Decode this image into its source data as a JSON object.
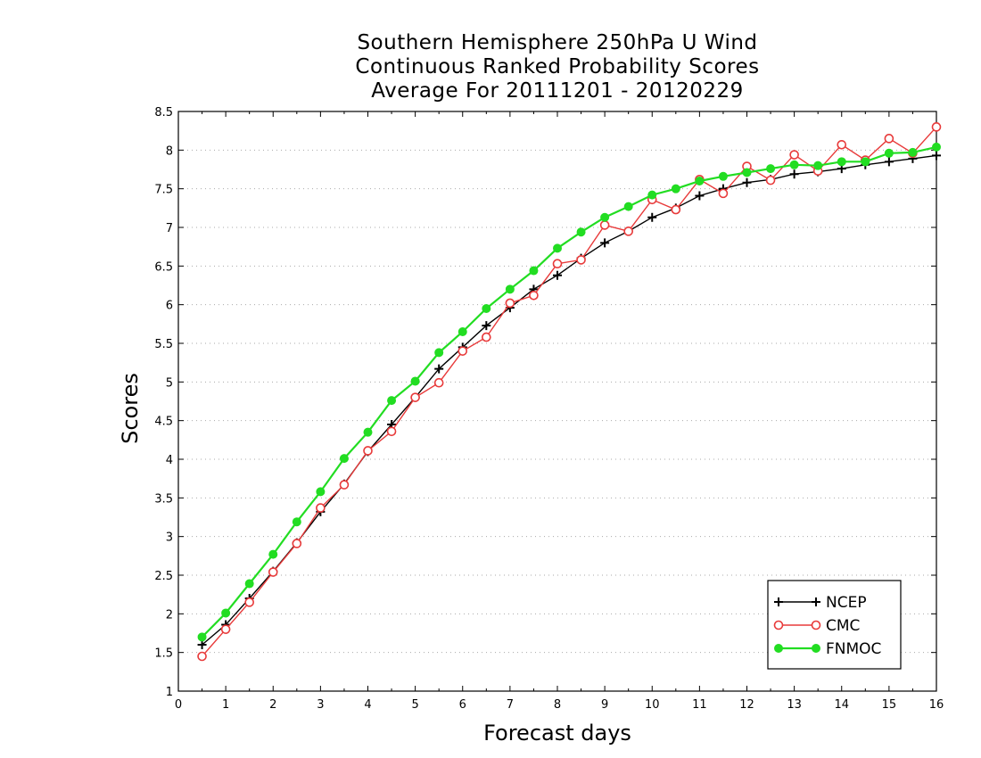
{
  "chart_data": {
    "type": "line",
    "title": [
      "Southern Hemisphere 250hPa U Wind",
      "Continuous Ranked Probability Scores",
      "Average For 20111201 - 20120229"
    ],
    "xlabel": "Forecast days",
    "ylabel": "Scores",
    "xlim": [
      0,
      16
    ],
    "ylim": [
      1,
      8.5
    ],
    "xticks": [
      "0",
      "1",
      "2",
      "3",
      "4",
      "5",
      "6",
      "7",
      "8",
      "9",
      "10",
      "11",
      "12",
      "13",
      "14",
      "15",
      "16"
    ],
    "yticks": [
      "1",
      "1.5",
      "2",
      "2.5",
      "3",
      "3.5",
      "4",
      "4.5",
      "5",
      "5.5",
      "6",
      "6.5",
      "7",
      "7.5",
      "8",
      "8.5"
    ],
    "grid": true,
    "legend_position": "bottom-right",
    "x": [
      0.5,
      1,
      1.5,
      2,
      2.5,
      3,
      3.5,
      4,
      4.5,
      5,
      5.5,
      6,
      6.5,
      7,
      7.5,
      8,
      8.5,
      9,
      9.5,
      10,
      10.5,
      11,
      11.5,
      12,
      12.5,
      13,
      13.5,
      14,
      14.5,
      15,
      15.5,
      16
    ],
    "series": [
      {
        "name": "NCEP",
        "color": "#000000",
        "marker": "plus",
        "values": [
          1.6,
          1.86,
          2.2,
          2.55,
          2.92,
          3.32,
          3.68,
          4.1,
          4.45,
          4.8,
          5.17,
          5.45,
          5.73,
          5.96,
          6.2,
          6.38,
          6.6,
          6.8,
          6.95,
          7.13,
          7.25,
          7.41,
          7.5,
          7.58,
          7.62,
          7.69,
          7.72,
          7.76,
          7.81,
          7.85,
          7.89,
          7.93
        ]
      },
      {
        "name": "CMC",
        "color": "#e83a3a",
        "marker": "open-circle",
        "values": [
          1.45,
          1.8,
          2.15,
          2.54,
          2.91,
          3.37,
          3.67,
          4.11,
          4.36,
          4.8,
          4.99,
          5.4,
          5.58,
          6.02,
          6.12,
          6.53,
          6.58,
          7.03,
          6.95,
          7.36,
          7.23,
          7.62,
          7.44,
          7.79,
          7.61,
          7.94,
          7.73,
          8.07,
          7.87,
          8.15,
          7.96,
          8.3
        ]
      },
      {
        "name": "FNMOC",
        "color": "#22dd22",
        "marker": "filled-circle",
        "values": [
          1.7,
          2.01,
          2.39,
          2.77,
          3.19,
          3.58,
          4.01,
          4.35,
          4.76,
          5.01,
          5.38,
          5.65,
          5.95,
          6.2,
          6.44,
          6.73,
          6.94,
          7.13,
          7.27,
          7.42,
          7.5,
          7.6,
          7.66,
          7.71,
          7.76,
          7.81,
          7.8,
          7.85,
          7.85,
          7.96,
          7.97,
          8.04
        ]
      }
    ]
  }
}
